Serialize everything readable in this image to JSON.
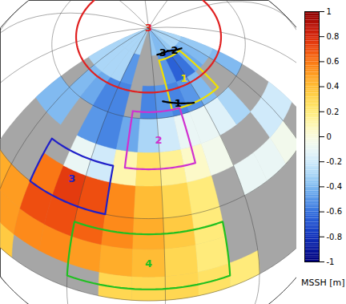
{
  "chart_data": {
    "type": "map",
    "grid": true,
    "cells": {
      "lon_edges": [
        -100,
        -90,
        -80,
        -70,
        -60,
        -50,
        -40,
        -30,
        -20,
        -10,
        0,
        10,
        20,
        30,
        40
      ],
      "lat_edges": [
        0,
        10,
        20,
        30,
        40,
        50,
        60,
        70,
        80,
        90
      ],
      "values": [
        [
          0.35,
          0.35,
          null,
          null,
          null,
          0.3,
          0.3,
          0.3,
          0.25,
          0.2,
          null,
          null,
          null,
          null
        ],
        [
          0.4,
          0.5,
          0.55,
          0.55,
          0.5,
          0.45,
          0.4,
          0.3,
          0.2,
          null,
          null,
          null,
          null,
          null
        ],
        [
          0.45,
          0.5,
          0.7,
          0.7,
          0.65,
          0.55,
          0.45,
          0.35,
          0.2,
          null,
          null,
          null,
          null,
          null
        ],
        [
          null,
          null,
          0.6,
          0.75,
          0.7,
          0.55,
          0.4,
          0.3,
          0.2,
          null,
          -0.1,
          -0.1,
          -0.05,
          null
        ],
        [
          null,
          null,
          null,
          -0.1,
          -0.2,
          0.1,
          0.25,
          0.15,
          0.05,
          -0.05,
          null,
          null,
          -0.2,
          -0.2
        ],
        [
          -0.4,
          -0.4,
          null,
          -0.5,
          -0.55,
          -0.45,
          -0.3,
          -0.2,
          -0.1,
          -0.1,
          -0.15,
          -0.3,
          null,
          null
        ],
        [
          null,
          -0.4,
          -0.45,
          -0.55,
          -0.55,
          null,
          -0.55,
          -0.5,
          -0.55,
          -0.5,
          -0.4,
          null,
          null,
          -0.4
        ],
        [
          -0.3,
          -0.3,
          -0.3,
          -0.3,
          -0.5,
          null,
          null,
          null,
          -0.5,
          -0.65,
          -0.6,
          -0.45,
          -0.4,
          -0.35
        ],
        [
          -0.3,
          -0.3,
          -0.3,
          -0.3,
          -0.3,
          null,
          null,
          -0.35,
          -0.4,
          -0.4,
          -0.35,
          -0.3,
          -0.3,
          -0.3
        ]
      ]
    },
    "colorbar": {
      "label": "MSSH [m]",
      "range": [
        -1,
        1
      ],
      "ticks": [
        1,
        0.8,
        0.6,
        0.4,
        0.2,
        0,
        -0.2,
        -0.4,
        -0.6,
        -0.8,
        -1
      ]
    },
    "regions": [
      {
        "label": "1",
        "color": "#f0e000",
        "lon": [
          -20,
          15
        ],
        "lat": [
          62,
          78
        ]
      },
      {
        "label": "2",
        "color": "#d030d0",
        "lon": [
          -45,
          -15
        ],
        "lat": [
          45,
          62
        ]
      },
      {
        "label": "3",
        "color": "#2020c8",
        "lon": [
          -80,
          -50
        ],
        "lat": [
          30,
          45
        ]
      },
      {
        "label": "4",
        "color": "#20c020",
        "lon": [
          -60,
          -10
        ],
        "lat": [
          5,
          25
        ]
      }
    ],
    "circles": [
      {
        "label": "3",
        "color": "#e02020",
        "lat": 68
      }
    ],
    "sections": [
      {
        "label": "3",
        "color": "#000000",
        "points": [
          [
            -20,
            80
          ],
          [
            0,
            80
          ]
        ]
      },
      {
        "label": "2",
        "color": "#000000",
        "points": [
          [
            0,
            80
          ],
          [
            20,
            78
          ]
        ]
      },
      {
        "label": "1",
        "color": "#000000",
        "points": [
          [
            -25,
            65
          ],
          [
            -5,
            62
          ]
        ]
      }
    ]
  }
}
